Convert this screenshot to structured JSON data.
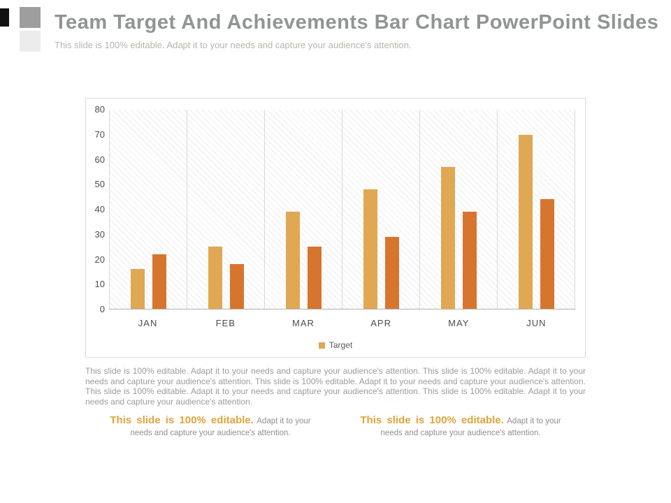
{
  "slide": {
    "title": "Team Target And Achievements Bar Chart PowerPoint Slides",
    "subtitle": "This slide is 100% editable. Adapt it to your needs and capture your audience's attention."
  },
  "chart_data": {
    "type": "bar",
    "categories": [
      "JAN",
      "FEB",
      "MAR",
      "APR",
      "MAY",
      "JUN"
    ],
    "series": [
      {
        "name": "Target",
        "color": "#e0a852",
        "values": [
          16,
          25,
          39,
          48,
          57,
          70
        ]
      },
      {
        "name": "",
        "color": "#d7752f",
        "values": [
          22,
          18,
          25,
          29,
          39,
          44
        ]
      }
    ],
    "title": "",
    "xlabel": "",
    "ylabel": "",
    "ylim": [
      0,
      80
    ],
    "yticks": [
      80,
      70,
      60,
      50,
      40,
      30,
      20,
      10,
      0
    ],
    "grid": "vertical",
    "plot_background": "diagonal-hatch",
    "legend_position": "bottom",
    "legend": [
      {
        "label": "Target",
        "color": "#e0a852"
      }
    ]
  },
  "body": {
    "paragraph": "This slide is 100% editable. Adapt it to your needs and capture your audience's attention. This slide is 100% editable. Adapt it to your needs and capture your audience's attention. This slide is 100% editable. Adapt it to your needs and capture your audience's attention. This slide is 100% editable. Adapt it to your needs and capture your audience's attention. This slide is 100% editable. Adapt it to your needs and capture your audience's attention.",
    "highlight_color": "#e2a43b",
    "callouts": [
      {
        "highlight": "This slide is 100% editable.",
        "text": "Adapt it to your needs and capture your audience's attention."
      },
      {
        "highlight": "This slide is 100% editable.",
        "text": "Adapt it to your needs and capture your audience's attention."
      }
    ]
  }
}
